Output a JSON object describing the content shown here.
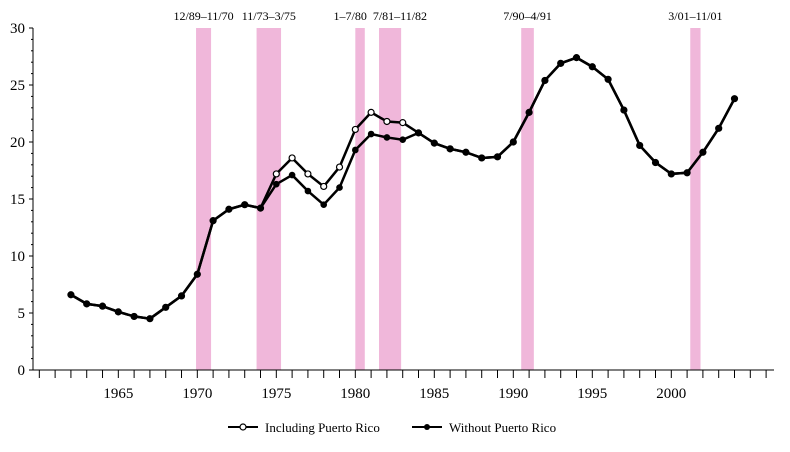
{
  "chart_data": {
    "type": "line",
    "title": "",
    "xlabel": "",
    "ylabel": "",
    "ylim": [
      0,
      30
    ],
    "xlim": [
      1959.6,
      2006.5
    ],
    "yticks": [
      "0",
      "5",
      "10",
      "15",
      "20",
      "25",
      "30"
    ],
    "xticks": [
      "1965",
      "1970",
      "1975",
      "1980",
      "1985",
      "1990",
      "1995",
      "2000"
    ],
    "grid": false,
    "legend_placement": "bottom",
    "recession_color": "#f0b7da",
    "recessions": [
      {
        "label": "12/89–11/70",
        "start": 1969.92,
        "end": 1970.87
      },
      {
        "label": "11/73–3/75",
        "start": 1973.75,
        "end": 1975.3
      },
      {
        "label": "1–7/80",
        "start": 1980.0,
        "end": 1980.6
      },
      {
        "label": "7/81–11/82",
        "start": 1981.5,
        "end": 1982.9
      },
      {
        "label": "7/90–4/91",
        "start": 1990.5,
        "end": 1991.3
      },
      {
        "label": "3/01–11/01",
        "start": 2001.2,
        "end": 2001.85
      }
    ],
    "x": [
      1962,
      1963,
      1964,
      1965,
      1966,
      1967,
      1968,
      1969,
      1970,
      1971,
      1972,
      1973,
      1974,
      1975,
      1976,
      1977,
      1978,
      1979,
      1980,
      1981,
      1982,
      1983,
      1984,
      1985,
      1986,
      1987,
      1988,
      1989,
      1990,
      1991,
      1992,
      1993,
      1994,
      1995,
      1996,
      1997,
      1998,
      1999,
      2000,
      2001,
      2002,
      2003,
      2004
    ],
    "series": [
      {
        "name": "Including Puerto Rico",
        "marker": "open",
        "values": [
          6.6,
          5.8,
          5.6,
          5.1,
          4.7,
          4.5,
          5.5,
          6.5,
          8.4,
          13.1,
          14.1,
          14.5,
          14.2,
          17.2,
          18.6,
          17.2,
          16.1,
          17.8,
          21.1,
          22.6,
          21.8,
          21.7,
          20.8,
          19.9,
          19.4,
          19.1,
          18.6,
          18.7,
          20.0,
          22.6,
          25.4,
          26.9,
          27.4,
          26.6,
          25.5,
          22.8,
          19.7,
          18.2,
          17.2,
          17.3,
          19.1,
          21.2,
          23.8
        ]
      },
      {
        "name": "Without Puerto Rico",
        "marker": "filled",
        "values": [
          6.6,
          5.8,
          5.6,
          5.1,
          4.7,
          4.5,
          5.5,
          6.5,
          8.4,
          13.1,
          14.1,
          14.5,
          14.2,
          16.3,
          17.1,
          15.7,
          14.5,
          16.0,
          19.3,
          20.7,
          20.4,
          20.2,
          20.8,
          19.9,
          19.4,
          19.1,
          18.6,
          18.7,
          20.0,
          22.6,
          25.4,
          26.9,
          27.4,
          26.6,
          25.5,
          22.8,
          19.7,
          18.2,
          17.2,
          17.3,
          19.1,
          21.2,
          23.8
        ]
      }
    ]
  }
}
